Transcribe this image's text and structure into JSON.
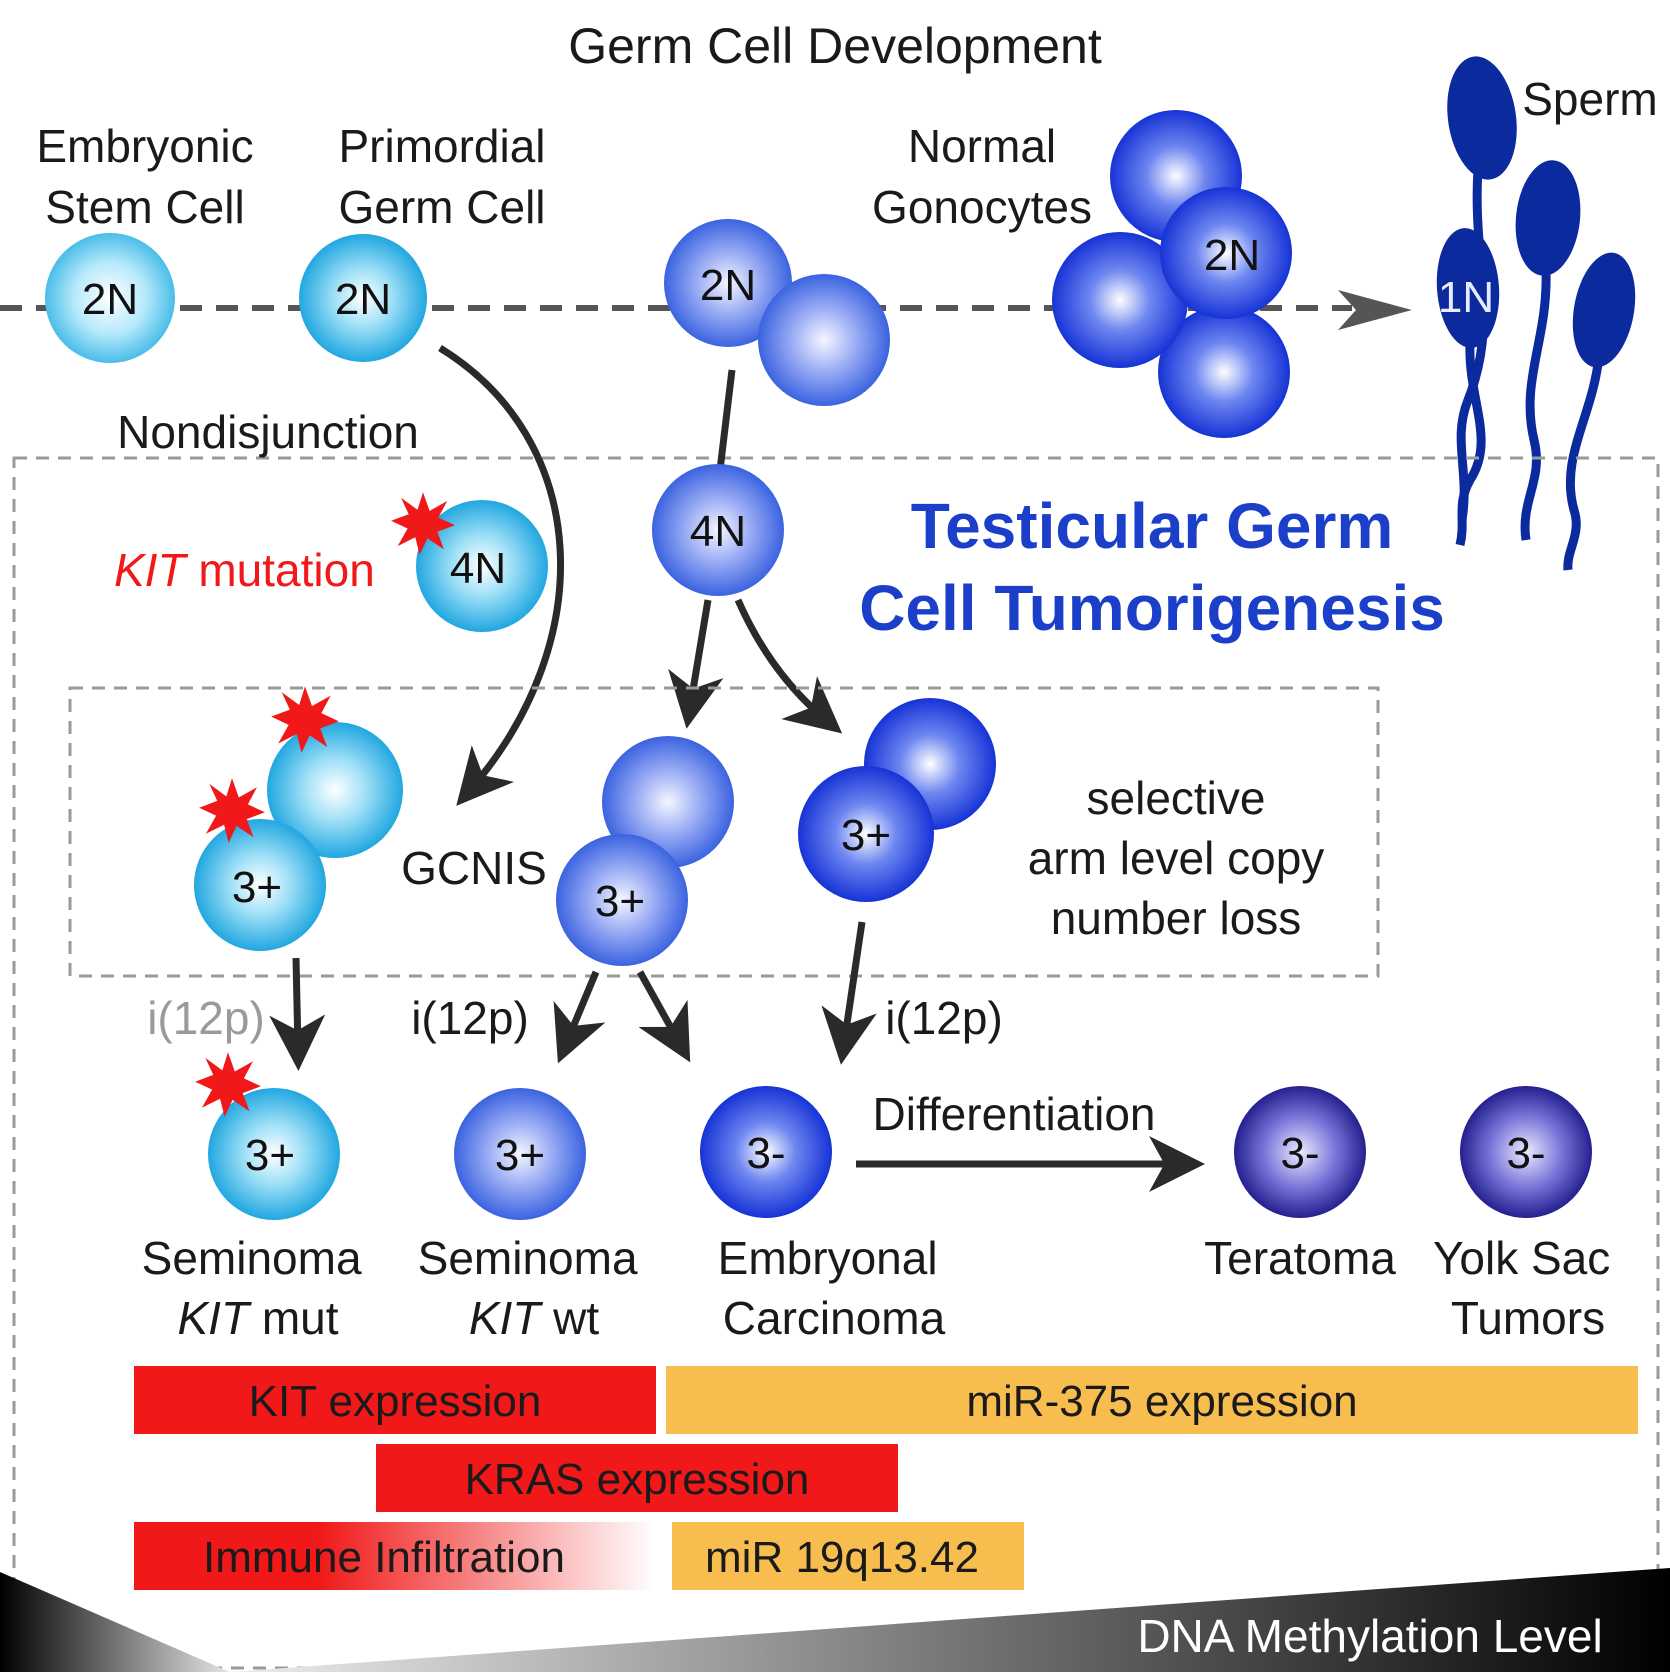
{
  "title": "Germ Cell Development",
  "stages": {
    "embryonic_stem_cell": {
      "line1": "Embryonic",
      "line2": "Stem Cell",
      "ploidy": "2N"
    },
    "primordial_germ_cell": {
      "line1": "Primordial",
      "line2": "Germ Cell",
      "ploidy": "2N"
    },
    "gonocyte_pair": {
      "ploidy": "2N"
    },
    "normal_gonocytes": {
      "line1": "Normal",
      "line2": "Gonocytes",
      "ploidy": "2N"
    },
    "sperm": {
      "label": "Sperm",
      "ploidy": "1N"
    }
  },
  "tumorigenesis": {
    "title_line1": "Testicular Germ",
    "title_line2": "Cell Tumorigenesis",
    "nondisjunction": "Nondisjunction",
    "kit_mutation_gene": "KIT",
    "kit_mutation_text": " mutation",
    "tetraploid_left": "4N",
    "tetraploid_center": "4N",
    "gcnis": "GCNIS",
    "gcnis_left_cell": "3+",
    "gcnis_center_cell": "3+",
    "gcnis_right_cell": "3+",
    "selective_line1": "selective",
    "selective_line2": "arm level copy",
    "selective_line3": "number loss",
    "i12p_left": "i(12p)",
    "i12p_center": "i(12p)",
    "i12p_right": "i(12p)",
    "differentiation": "Differentiation"
  },
  "tumors": [
    {
      "ploidy": "3+",
      "line1": "Seminoma",
      "line2_italic": "KIT",
      "line2_rest": " mut"
    },
    {
      "ploidy": "3+",
      "line1": "Seminoma",
      "line2_italic": "KIT",
      "line2_rest": " wt"
    },
    {
      "ploidy": "3-",
      "line1": "Embryonal",
      "line2": "Carcinoma"
    },
    {
      "ploidy": "3-",
      "line1": "Teratoma"
    },
    {
      "ploidy": "3-",
      "line1": "Yolk Sac",
      "line2": "Tumors"
    }
  ],
  "bars": {
    "kit_expression": "KIT expression",
    "mir375_expression": "miR-375 expression",
    "kras_expression": "KRAS expression",
    "immune_infiltration": "Immune Infiltration",
    "mir_19q": "miR 19q13.42"
  },
  "methylation_label": "DNA Methylation Level",
  "colors": {
    "red": "#f01818",
    "orange": "#f8bd4f",
    "title_blue": "#1b3fc8",
    "sperm": "#0b2a9e",
    "arrow": "#2a2a2a"
  }
}
